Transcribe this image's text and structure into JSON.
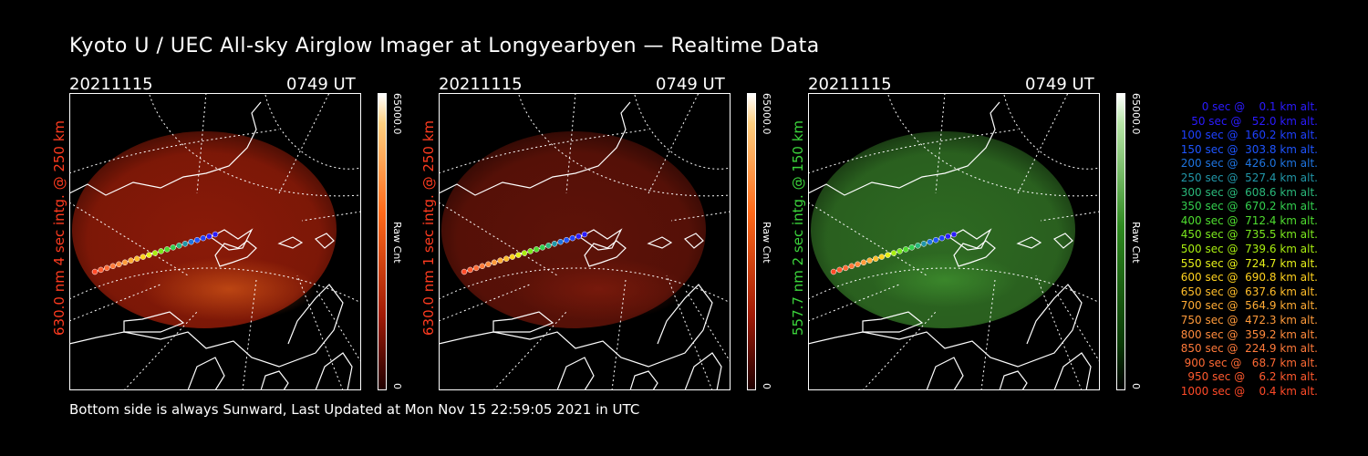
{
  "title": "Kyoto U / UEC All-sky Airglow Imager at Longyearbyen — Realtime Data",
  "footer": "Bottom side is always Sunward, Last Updated at Mon Nov 15 22:59:05 2021 in UTC",
  "panels": [
    {
      "date": "20211115",
      "time": "0749 UT",
      "ylabel": "630.0 nm 4 sec intg. @ 250 km",
      "label_color": "#ff3b1f",
      "cbar_max": "65000.0",
      "cbar_min": "0",
      "cbar_label": "Raw Cnt",
      "colormap": "red",
      "image_glow": "#8a1a08",
      "image_hot": "#c24a14"
    },
    {
      "date": "20211115",
      "time": "0749 UT",
      "ylabel": "630.0 nm 1 sec intg. @ 250 km",
      "label_color": "#ff3b1f",
      "cbar_max": "65000.0",
      "cbar_min": "0",
      "cbar_label": "Raw Cnt",
      "colormap": "red",
      "image_glow": "#5e1208",
      "image_hot": "#7a1a0c"
    },
    {
      "date": "20211115",
      "time": "0749 UT",
      "ylabel": "557.7 nm 2 sec intg. @ 150 km",
      "label_color": "#3bd43b",
      "cbar_max": "65000.0",
      "cbar_min": "0",
      "cbar_label": "Raw Cnt",
      "colormap": "green",
      "image_glow": "#2e6a22",
      "image_hot": "#3c8a2c"
    }
  ],
  "legend": [
    {
      "text": "0 sec @    0.1 km alt.",
      "color": "#2b1bff"
    },
    {
      "text": "50 sec @   52.0 km alt.",
      "color": "#2b1bff"
    },
    {
      "text": "100 sec @  160.2 km alt.",
      "color": "#1e40ff"
    },
    {
      "text": "150 sec @  303.8 km alt.",
      "color": "#1e55ff"
    },
    {
      "text": "200 sec @  426.0 km alt.",
      "color": "#1e74e0"
    },
    {
      "text": "250 sec @  527.4 km alt.",
      "color": "#2196a8"
    },
    {
      "text": "300 sec @  608.6 km alt.",
      "color": "#2ab87a"
    },
    {
      "text": "350 sec @  670.2 km alt.",
      "color": "#33cf4e"
    },
    {
      "text": "400 sec @  712.4 km alt.",
      "color": "#4fdd2f"
    },
    {
      "text": "450 sec @  735.5 km alt.",
      "color": "#7be81e"
    },
    {
      "text": "500 sec @  739.6 km alt.",
      "color": "#a9ef10"
    },
    {
      "text": "550 sec @  724.7 km alt.",
      "color": "#e6f01a"
    },
    {
      "text": "600 sec @  690.8 km alt.",
      "color": "#ffd21e"
    },
    {
      "text": "650 sec @  637.6 km alt.",
      "color": "#ffbd2a"
    },
    {
      "text": "700 sec @  564.9 km alt.",
      "color": "#ffab34"
    },
    {
      "text": "750 sec @  472.3 km alt.",
      "color": "#ff9a3a"
    },
    {
      "text": "800 sec @  359.2 km alt.",
      "color": "#ff8a3c"
    },
    {
      "text": "850 sec @  224.9 km alt.",
      "color": "#ff7a3a"
    },
    {
      "text": "900 sec @   68.7 km alt.",
      "color": "#ff6a34"
    },
    {
      "text": "950 sec @    6.2 km alt.",
      "color": "#ff5a2e"
    },
    {
      "text": "1000 sec @    0.4 km alt.",
      "color": "#ff4a28"
    }
  ]
}
